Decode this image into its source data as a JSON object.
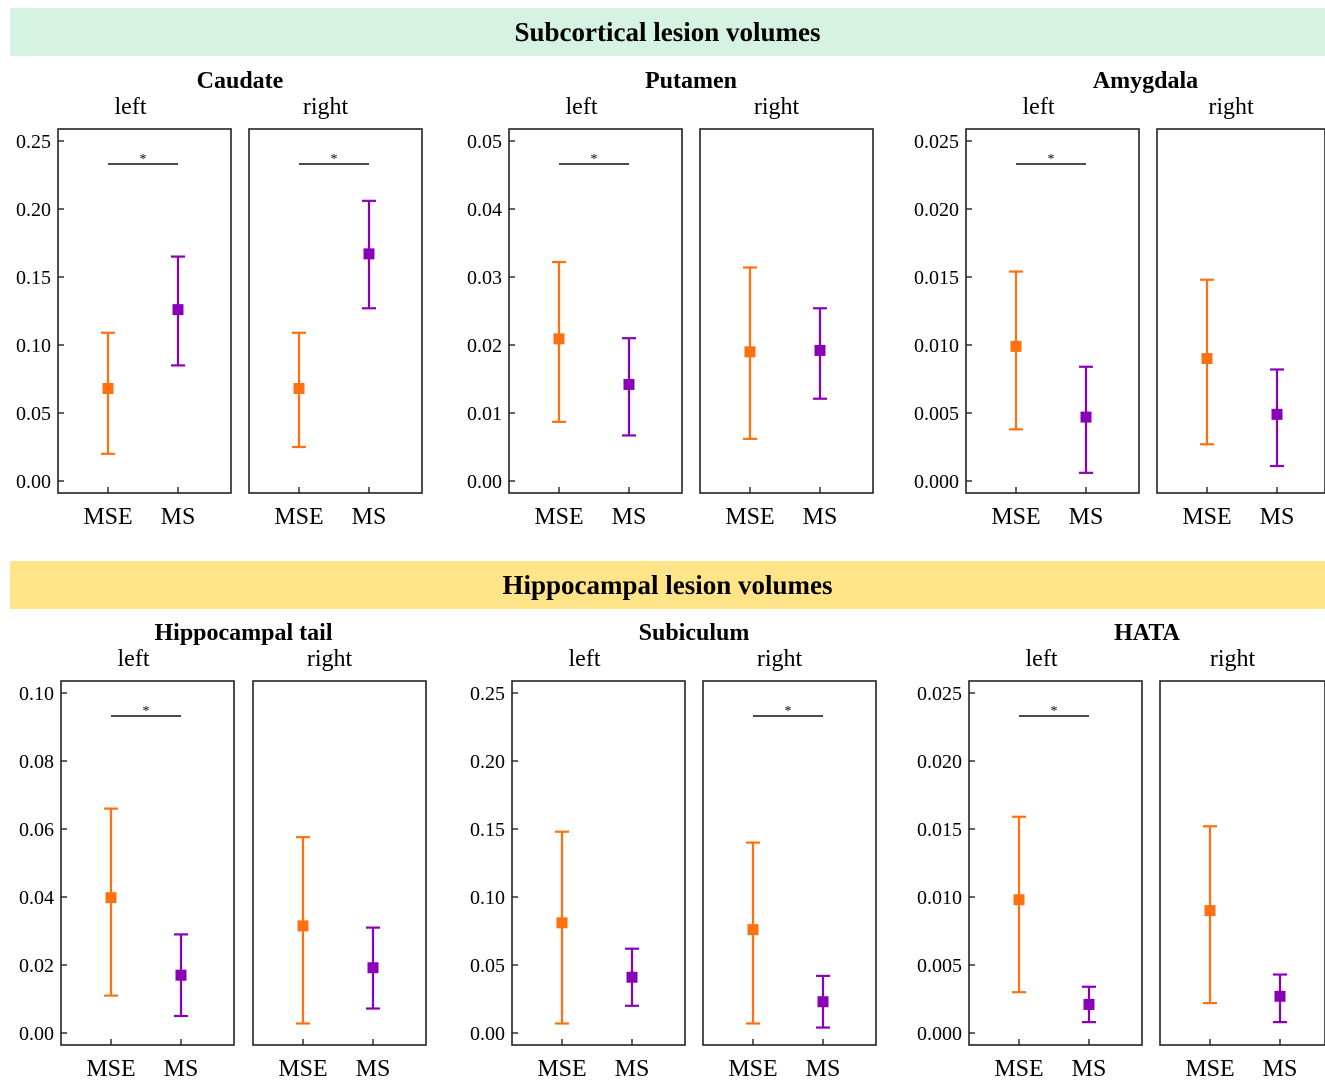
{
  "sections": [
    {
      "title": "Subcortical lesion volumes",
      "color": "#d6f2e2",
      "groups": [
        {
          "title": "Caudate",
          "ticks": [
            "0.00",
            "0.05",
            "0.10",
            "0.15",
            "0.20",
            "0.25"
          ]
        },
        {
          "title": "Putamen",
          "ticks": [
            "0.00",
            "0.01",
            "0.02",
            "0.03",
            "0.04",
            "0.05"
          ]
        },
        {
          "title": "Amygdala",
          "ticks": [
            "0.000",
            "0.005",
            "0.010",
            "0.015",
            "0.020",
            "0.025"
          ]
        }
      ]
    },
    {
      "title": "Hippocampal lesion volumes",
      "color": "#ffe588",
      "groups": [
        {
          "title": "Hippocampal tail",
          "ticks": [
            "0.00",
            "0.02",
            "0.04",
            "0.06",
            "0.08",
            "0.10"
          ]
        },
        {
          "title": "Subiculum",
          "ticks": [
            "0.00",
            "0.05",
            "0.10",
            "0.15",
            "0.20",
            "0.25"
          ]
        },
        {
          "title": "HATA",
          "ticks": [
            "0.000",
            "0.005",
            "0.010",
            "0.015",
            "0.020",
            "0.025"
          ]
        }
      ]
    }
  ],
  "side_labels": [
    "left",
    "right"
  ],
  "significance_marker": "*",
  "colors": {
    "MSE": "#ff7011",
    "MS": "#8a00b8"
  },
  "chart_data": [
    {
      "type": "scatter",
      "title": "Caudate left",
      "categories": [
        "MSE",
        "MS"
      ],
      "ylim": [
        0,
        0.25
      ],
      "series": [
        {
          "name": "MSE",
          "mean": 0.068,
          "lower": 0.02,
          "upper": 0.109
        },
        {
          "name": "MS",
          "mean": 0.126,
          "lower": 0.085,
          "upper": 0.165
        }
      ],
      "significant": true
    },
    {
      "type": "scatter",
      "title": "Caudate right",
      "categories": [
        "MSE",
        "MS"
      ],
      "ylim": [
        0,
        0.25
      ],
      "series": [
        {
          "name": "MSE",
          "mean": 0.068,
          "lower": 0.025,
          "upper": 0.109
        },
        {
          "name": "MS",
          "mean": 0.167,
          "lower": 0.127,
          "upper": 0.206
        }
      ],
      "significant": true
    },
    {
      "type": "scatter",
      "title": "Putamen left",
      "categories": [
        "MSE",
        "MS"
      ],
      "ylim": [
        0,
        0.05
      ],
      "series": [
        {
          "name": "MSE",
          "mean": 0.0209,
          "lower": 0.0087,
          "upper": 0.0322
        },
        {
          "name": "MS",
          "mean": 0.0142,
          "lower": 0.0067,
          "upper": 0.021
        }
      ],
      "significant": true
    },
    {
      "type": "scatter",
      "title": "Putamen right",
      "categories": [
        "MSE",
        "MS"
      ],
      "ylim": [
        0,
        0.05
      ],
      "series": [
        {
          "name": "MSE",
          "mean": 0.019,
          "lower": 0.0062,
          "upper": 0.0314
        },
        {
          "name": "MS",
          "mean": 0.0192,
          "lower": 0.0121,
          "upper": 0.0254
        }
      ],
      "significant": false
    },
    {
      "type": "scatter",
      "title": "Amygdala left",
      "categories": [
        "MSE",
        "MS"
      ],
      "ylim": [
        0,
        0.025
      ],
      "series": [
        {
          "name": "MSE",
          "mean": 0.0099,
          "lower": 0.0038,
          "upper": 0.0154
        },
        {
          "name": "MS",
          "mean": 0.0047,
          "lower": 0.0006,
          "upper": 0.0084
        }
      ],
      "significant": true
    },
    {
      "type": "scatter",
      "title": "Amygdala right",
      "categories": [
        "MSE",
        "MS"
      ],
      "ylim": [
        0,
        0.025
      ],
      "series": [
        {
          "name": "MSE",
          "mean": 0.009,
          "lower": 0.0027,
          "upper": 0.0148
        },
        {
          "name": "MS",
          "mean": 0.0049,
          "lower": 0.0011,
          "upper": 0.0082
        }
      ],
      "significant": false
    },
    {
      "type": "scatter",
      "title": "Hippocampal tail left",
      "categories": [
        "MSE",
        "MS"
      ],
      "ylim": [
        0,
        0.1
      ],
      "series": [
        {
          "name": "MSE",
          "mean": 0.0398,
          "lower": 0.011,
          "upper": 0.066
        },
        {
          "name": "MS",
          "mean": 0.017,
          "lower": 0.005,
          "upper": 0.029
        }
      ],
      "significant": true
    },
    {
      "type": "scatter",
      "title": "Hippocampal tail right",
      "categories": [
        "MSE",
        "MS"
      ],
      "ylim": [
        0,
        0.1
      ],
      "series": [
        {
          "name": "MSE",
          "mean": 0.0315,
          "lower": 0.0028,
          "upper": 0.0576
        },
        {
          "name": "MS",
          "mean": 0.0192,
          "lower": 0.0072,
          "upper": 0.031
        }
      ],
      "significant": false
    },
    {
      "type": "scatter",
      "title": "Subiculum left",
      "categories": [
        "MSE",
        "MS"
      ],
      "ylim": [
        0,
        0.25
      ],
      "series": [
        {
          "name": "MSE",
          "mean": 0.081,
          "lower": 0.007,
          "upper": 0.148
        },
        {
          "name": "MS",
          "mean": 0.041,
          "lower": 0.02,
          "upper": 0.062
        }
      ],
      "significant": false
    },
    {
      "type": "scatter",
      "title": "Subiculum right",
      "categories": [
        "MSE",
        "MS"
      ],
      "ylim": [
        0,
        0.25
      ],
      "series": [
        {
          "name": "MSE",
          "mean": 0.076,
          "lower": 0.007,
          "upper": 0.14
        },
        {
          "name": "MS",
          "mean": 0.023,
          "lower": 0.004,
          "upper": 0.042
        }
      ],
      "significant": true
    },
    {
      "type": "scatter",
      "title": "HATA left",
      "categories": [
        "MSE",
        "MS"
      ],
      "ylim": [
        0,
        0.025
      ],
      "series": [
        {
          "name": "MSE",
          "mean": 0.0098,
          "lower": 0.003,
          "upper": 0.0159
        },
        {
          "name": "MS",
          "mean": 0.0021,
          "lower": 0.0008,
          "upper": 0.0034
        }
      ],
      "significant": true
    },
    {
      "type": "scatter",
      "title": "HATA right",
      "categories": [
        "MSE",
        "MS"
      ],
      "ylim": [
        0,
        0.025
      ],
      "series": [
        {
          "name": "MSE",
          "mean": 0.009,
          "lower": 0.0022,
          "upper": 0.0152
        },
        {
          "name": "MS",
          "mean": 0.0027,
          "lower": 0.0008,
          "upper": 0.0043
        }
      ],
      "significant": false
    }
  ]
}
